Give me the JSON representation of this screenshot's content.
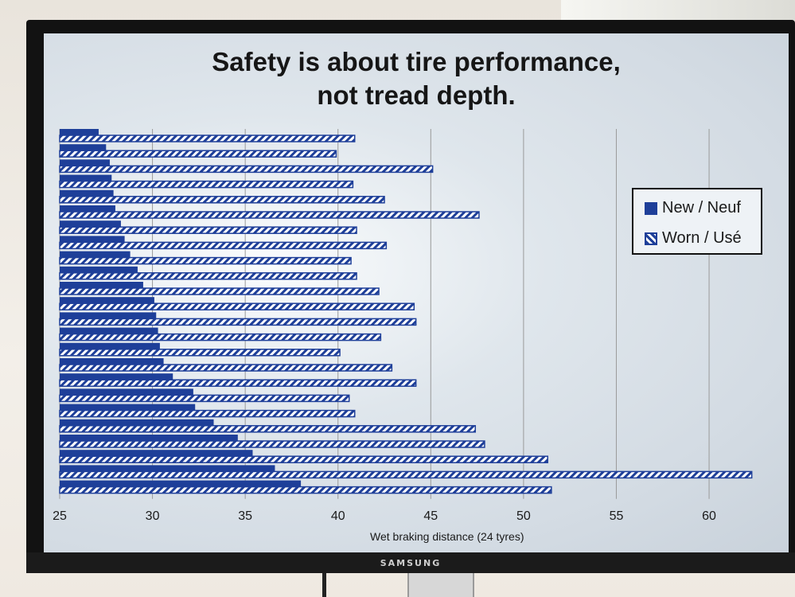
{
  "device": {
    "brand": "SAMSUNG"
  },
  "chart_data": {
    "type": "bar",
    "orientation": "horizontal",
    "title": "Safety is about tire performance, not tread depth.",
    "title_lines": [
      "Safety is about tire performance,",
      "not tread depth."
    ],
    "xlabel": "Wet braking distance (24 tyres)",
    "ylabel": "",
    "xlim": [
      25,
      63
    ],
    "x_ticks": [
      25,
      30,
      35,
      40,
      45,
      50,
      55,
      60
    ],
    "grid": "vertical",
    "legend_position": "right",
    "colors": {
      "new": "#1e3f99",
      "worn_stripe": "#ffffff"
    },
    "series": [
      {
        "name": "New / Neuf",
        "values": [
          27.1,
          27.5,
          27.7,
          27.8,
          27.9,
          28.0,
          28.3,
          28.5,
          28.8,
          29.2,
          29.5,
          30.1,
          30.2,
          30.3,
          30.4,
          30.6,
          31.1,
          32.2,
          32.3,
          33.3,
          34.6,
          35.4,
          36.6,
          38.0
        ]
      },
      {
        "name": "Worn / Usé",
        "values": [
          40.9,
          39.9,
          45.1,
          40.8,
          42.5,
          47.6,
          41.0,
          42.6,
          40.7,
          41.0,
          42.2,
          44.1,
          44.2,
          42.3,
          40.1,
          42.9,
          44.2,
          40.6,
          40.9,
          47.4,
          47.9,
          51.3,
          62.3,
          51.5
        ]
      }
    ]
  }
}
